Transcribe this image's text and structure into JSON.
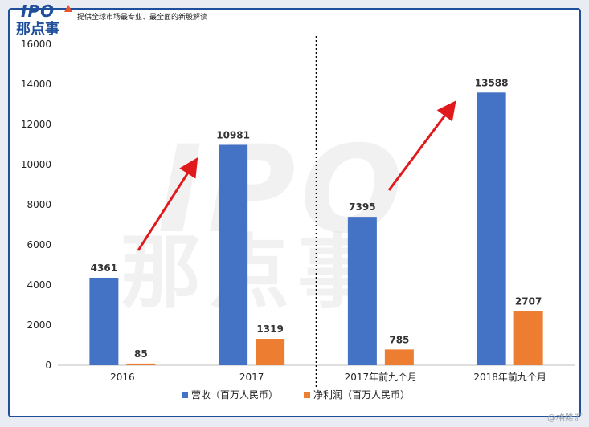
{
  "header": {
    "logo_ipo": "IPO",
    "logo_cn": "那点事",
    "tagline": "提供全球市场最专业、最全面的新股解读"
  },
  "watermark": {
    "ipo": "IPO",
    "cn": "那点事"
  },
  "source_label": "@格隆汇",
  "colors": {
    "revenue": "#4472c4",
    "profit": "#ed7d31",
    "arrow": "#e0191c",
    "frame": "#1f4f9a"
  },
  "chart_data": {
    "type": "bar",
    "categories": [
      "2016",
      "2017",
      "2017年前九个月",
      "2018年前九个月"
    ],
    "series": [
      {
        "name": "营收（百万人民币）",
        "values": [
          4361,
          10981,
          7395,
          13588
        ]
      },
      {
        "name": "净利润（百万人民币）",
        "values": [
          85,
          1319,
          785,
          2707
        ]
      }
    ],
    "yticks": [
      0,
      2000,
      4000,
      6000,
      8000,
      10000,
      12000,
      14000,
      16000
    ],
    "ylim": [
      0,
      16000
    ],
    "legend_position": "bottom",
    "grid": false,
    "divider_between_categories": [
      1,
      2
    ]
  }
}
